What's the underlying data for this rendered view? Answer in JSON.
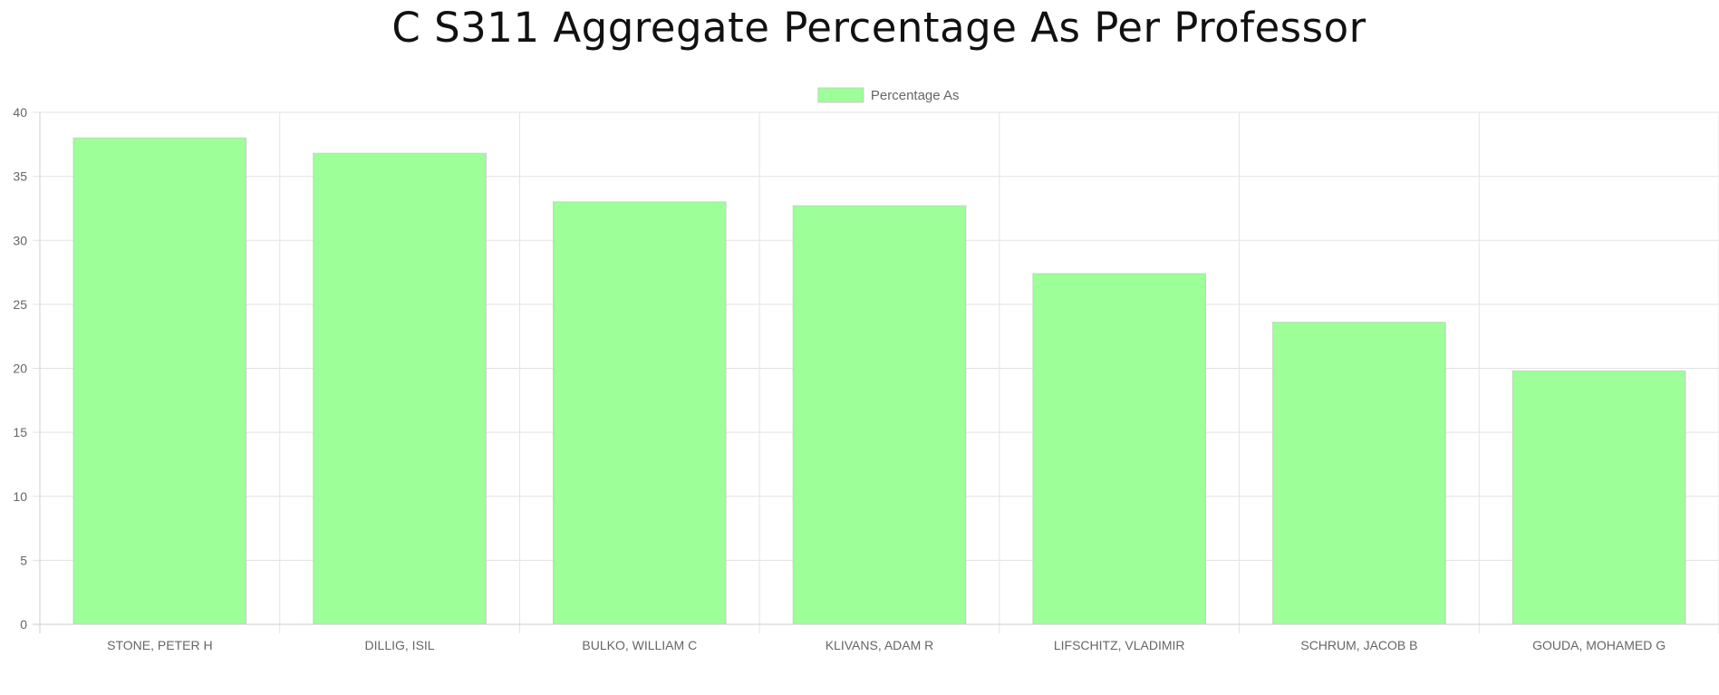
{
  "chart_data": {
    "type": "bar",
    "title": "C S311 Aggregate Percentage As Per Professor",
    "xlabel": "",
    "ylabel": "",
    "categories": [
      "STONE, PETER H",
      "DILLIG, ISIL",
      "BULKO, WILLIAM C",
      "KLIVANS, ADAM R",
      "LIFSCHITZ, VLADIMIR",
      "SCHRUM, JACOB B",
      "GOUDA, MOHAMED G"
    ],
    "series": [
      {
        "name": "Percentage As",
        "values": [
          38.0,
          36.8,
          33.0,
          32.7,
          27.4,
          23.6,
          19.8
        ],
        "color": "#9cff98",
        "border_color": "#cccccc"
      }
    ],
    "ylim": [
      0,
      40
    ],
    "yticks": [
      "0",
      "5",
      "10",
      "15",
      "20",
      "25",
      "30",
      "35",
      "40"
    ],
    "grid": true,
    "legend_position": "top-center"
  }
}
